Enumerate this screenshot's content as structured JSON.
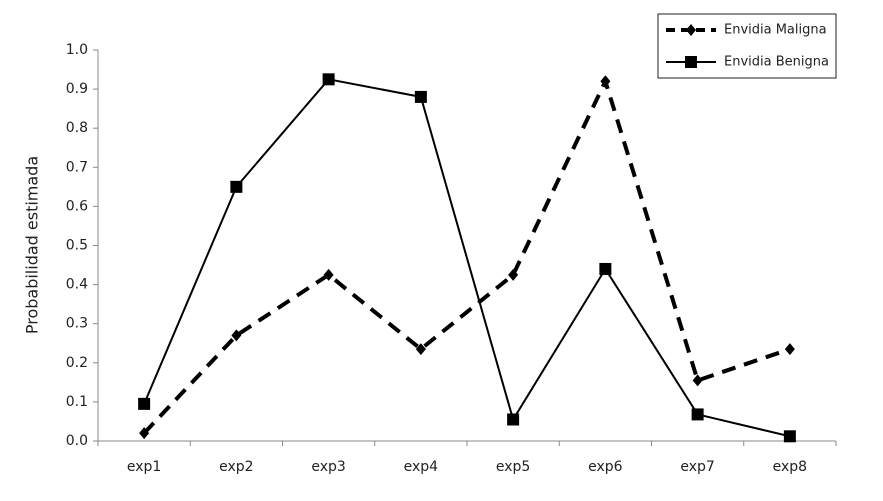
{
  "chart_data": {
    "type": "line",
    "y_label": "Probabilidad estimada",
    "categories": [
      "exp1",
      "exp2",
      "exp3",
      "exp4",
      "exp5",
      "exp6",
      "exp7",
      "exp8"
    ],
    "series": [
      {
        "name": "Envidia Maligna",
        "color": "#000000",
        "line_style": "dashed",
        "marker": "diamond",
        "values": [
          0.02,
          0.27,
          0.425,
          0.235,
          0.425,
          0.92,
          0.155,
          0.235
        ]
      },
      {
        "name": "Envidia Benigna",
        "color": "#000000",
        "line_style": "solid",
        "marker": "square",
        "values": [
          0.095,
          0.65,
          0.925,
          0.88,
          0.055,
          0.44,
          0.068,
          0.012
        ]
      }
    ],
    "ylim": [
      0,
      1
    ],
    "yticks": [
      {
        "value": 0,
        "label": "0.0"
      },
      {
        "value": 0.1,
        "label": "0.1"
      },
      {
        "value": 0.2,
        "label": "0.2"
      },
      {
        "value": 0.3,
        "label": "0.3"
      },
      {
        "value": 0.4,
        "label": "0.4"
      },
      {
        "value": 0.5,
        "label": "0.5"
      },
      {
        "value": 0.6,
        "label": "0.6"
      },
      {
        "value": 0.7,
        "label": "0.7"
      },
      {
        "value": 0.8,
        "label": "0.8"
      },
      {
        "value": 0.9,
        "label": "0.9"
      },
      {
        "value": 1,
        "label": "1.0"
      }
    ],
    "grid": false,
    "legend": "top-right"
  }
}
